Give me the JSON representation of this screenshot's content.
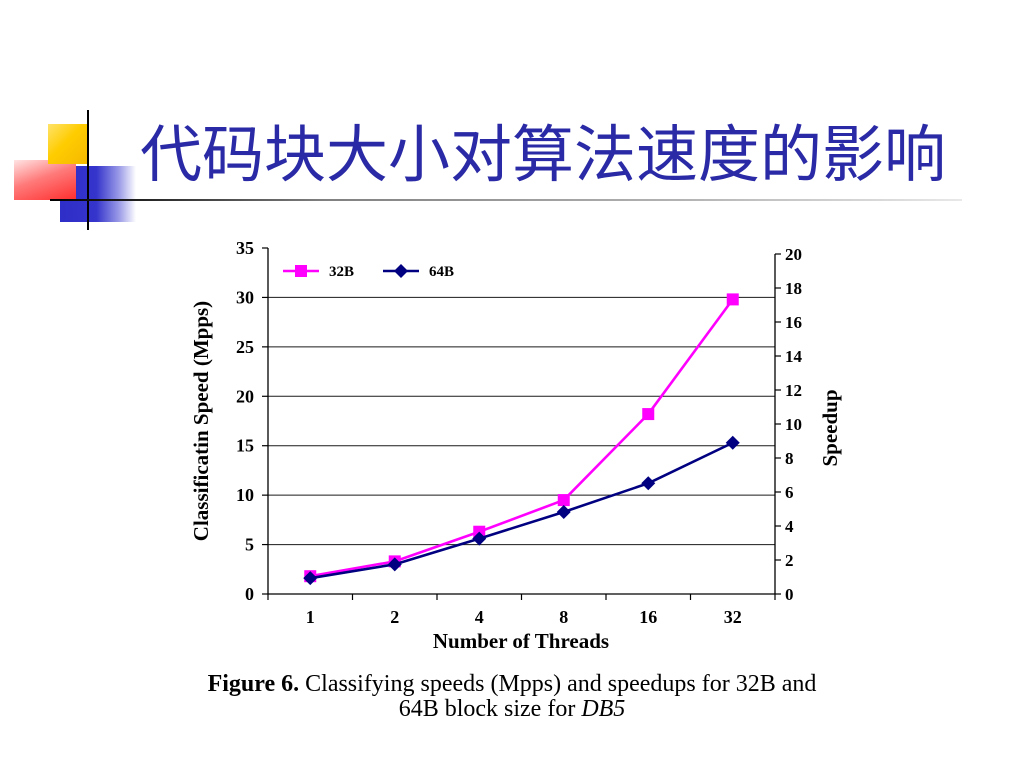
{
  "slide": {
    "title": "代码块大小对算法速度的影响",
    "title_color": "#2a2aa6"
  },
  "chart_data": {
    "type": "line",
    "categories": [
      "1",
      "2",
      "4",
      "8",
      "16",
      "32"
    ],
    "series": [
      {
        "name": "32B",
        "values": [
          1.8,
          3.3,
          6.3,
          9.5,
          18.2,
          29.8
        ],
        "color": "#ff00ff",
        "marker": "square"
      },
      {
        "name": "64B",
        "values": [
          1.6,
          3.0,
          5.6,
          8.3,
          11.2,
          15.3
        ],
        "color": "#000080",
        "marker": "diamond"
      }
    ],
    "xlabel": "Number of Threads",
    "ylabel": "Classificatin Speed (Mpps)",
    "y2label": "Speedup",
    "ylim": [
      0,
      35
    ],
    "yticks": [
      0,
      5,
      10,
      15,
      20,
      25,
      30,
      35
    ],
    "y2lim": [
      0,
      20
    ],
    "y2ticks": [
      0,
      2,
      4,
      6,
      8,
      10,
      12,
      14,
      16,
      18,
      20
    ],
    "grid": true,
    "legend": "top-left"
  },
  "caption": {
    "label": "Figure 6.",
    "line1": "Classifying speeds (Mpps) and speedups for 32B and",
    "line2": "64B block size for",
    "line2_italic": "DB5"
  }
}
